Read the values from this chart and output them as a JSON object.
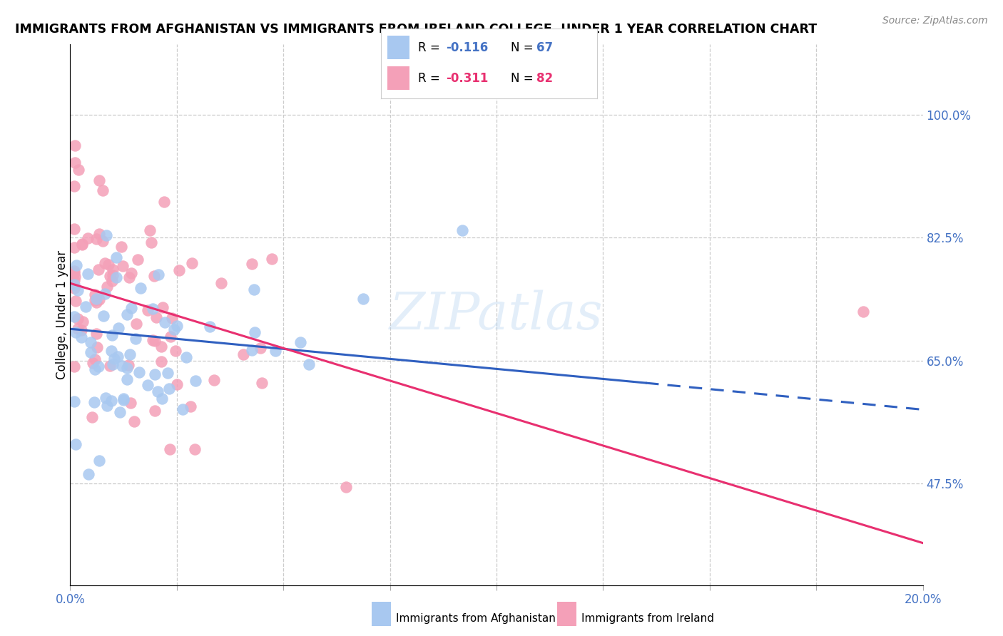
{
  "title": "IMMIGRANTS FROM AFGHANISTAN VS IMMIGRANTS FROM IRELAND COLLEGE, UNDER 1 YEAR CORRELATION CHART",
  "source": "Source: ZipAtlas.com",
  "ylabel": "College, Under 1 year",
  "yticks": [
    "47.5%",
    "65.0%",
    "82.5%",
    "100.0%"
  ],
  "ytick_vals": [
    0.475,
    0.65,
    0.825,
    1.0
  ],
  "xlim": [
    0.0,
    0.2
  ],
  "ylim": [
    0.33,
    1.1
  ],
  "legend_r1": "R = -0.116",
  "legend_n1": "N = 67",
  "legend_r2": "R = -0.311",
  "legend_n2": "N = 82",
  "color_afghanistan": "#a8c8f0",
  "color_ireland": "#f4a0b8",
  "color_blue_line": "#3060c0",
  "color_pink_line": "#e83070",
  "color_blue_text": "#4472c4",
  "color_pink_text": "#e83070",
  "watermark": "ZIPatlas",
  "afg_line_x0": 0.0,
  "afg_line_y0": 0.695,
  "afg_line_x1": 0.135,
  "afg_line_y1": 0.618,
  "afg_line_dash_x0": 0.135,
  "afg_line_dash_y0": 0.618,
  "afg_line_dash_x1": 0.2,
  "afg_line_dash_y1": 0.58,
  "irl_line_x0": 0.0,
  "irl_line_y0": 0.76,
  "irl_line_x1": 0.2,
  "irl_line_y1": 0.39
}
